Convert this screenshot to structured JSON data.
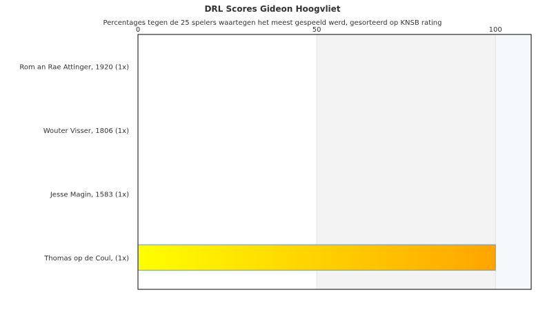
{
  "chart_data": {
    "type": "bar",
    "orientation": "horizontal",
    "title": "DRL Scores Gideon Hoogvliet",
    "subtitle": "Percentages tegen de 25 spelers waartegen het meest gespeeld werd, gesorteerd op KNSB rating",
    "categories": [
      "Rom an Rae Attinger, 1920 (1x)",
      "Wouter Visser, 1806 (1x)",
      "Jesse Magin, 1583 (1x)",
      "Thomas op de Coul,  (1x)"
    ],
    "values": [
      0,
      0,
      0,
      100
    ],
    "xlim": [
      0,
      110
    ],
    "xticks": [
      "0",
      "50",
      "100"
    ],
    "xtick_values": [
      0,
      50,
      100
    ],
    "axis_position": "top",
    "bands": [
      {
        "from": 50,
        "to": 100,
        "color": "#f3f3f3"
      },
      {
        "from": 100,
        "to": 110,
        "color": "#f6f9fc"
      }
    ],
    "bar_gradient": [
      "#ffff00",
      "#ffa500"
    ],
    "bar_border": "#5b9bd5",
    "legend": "none"
  }
}
